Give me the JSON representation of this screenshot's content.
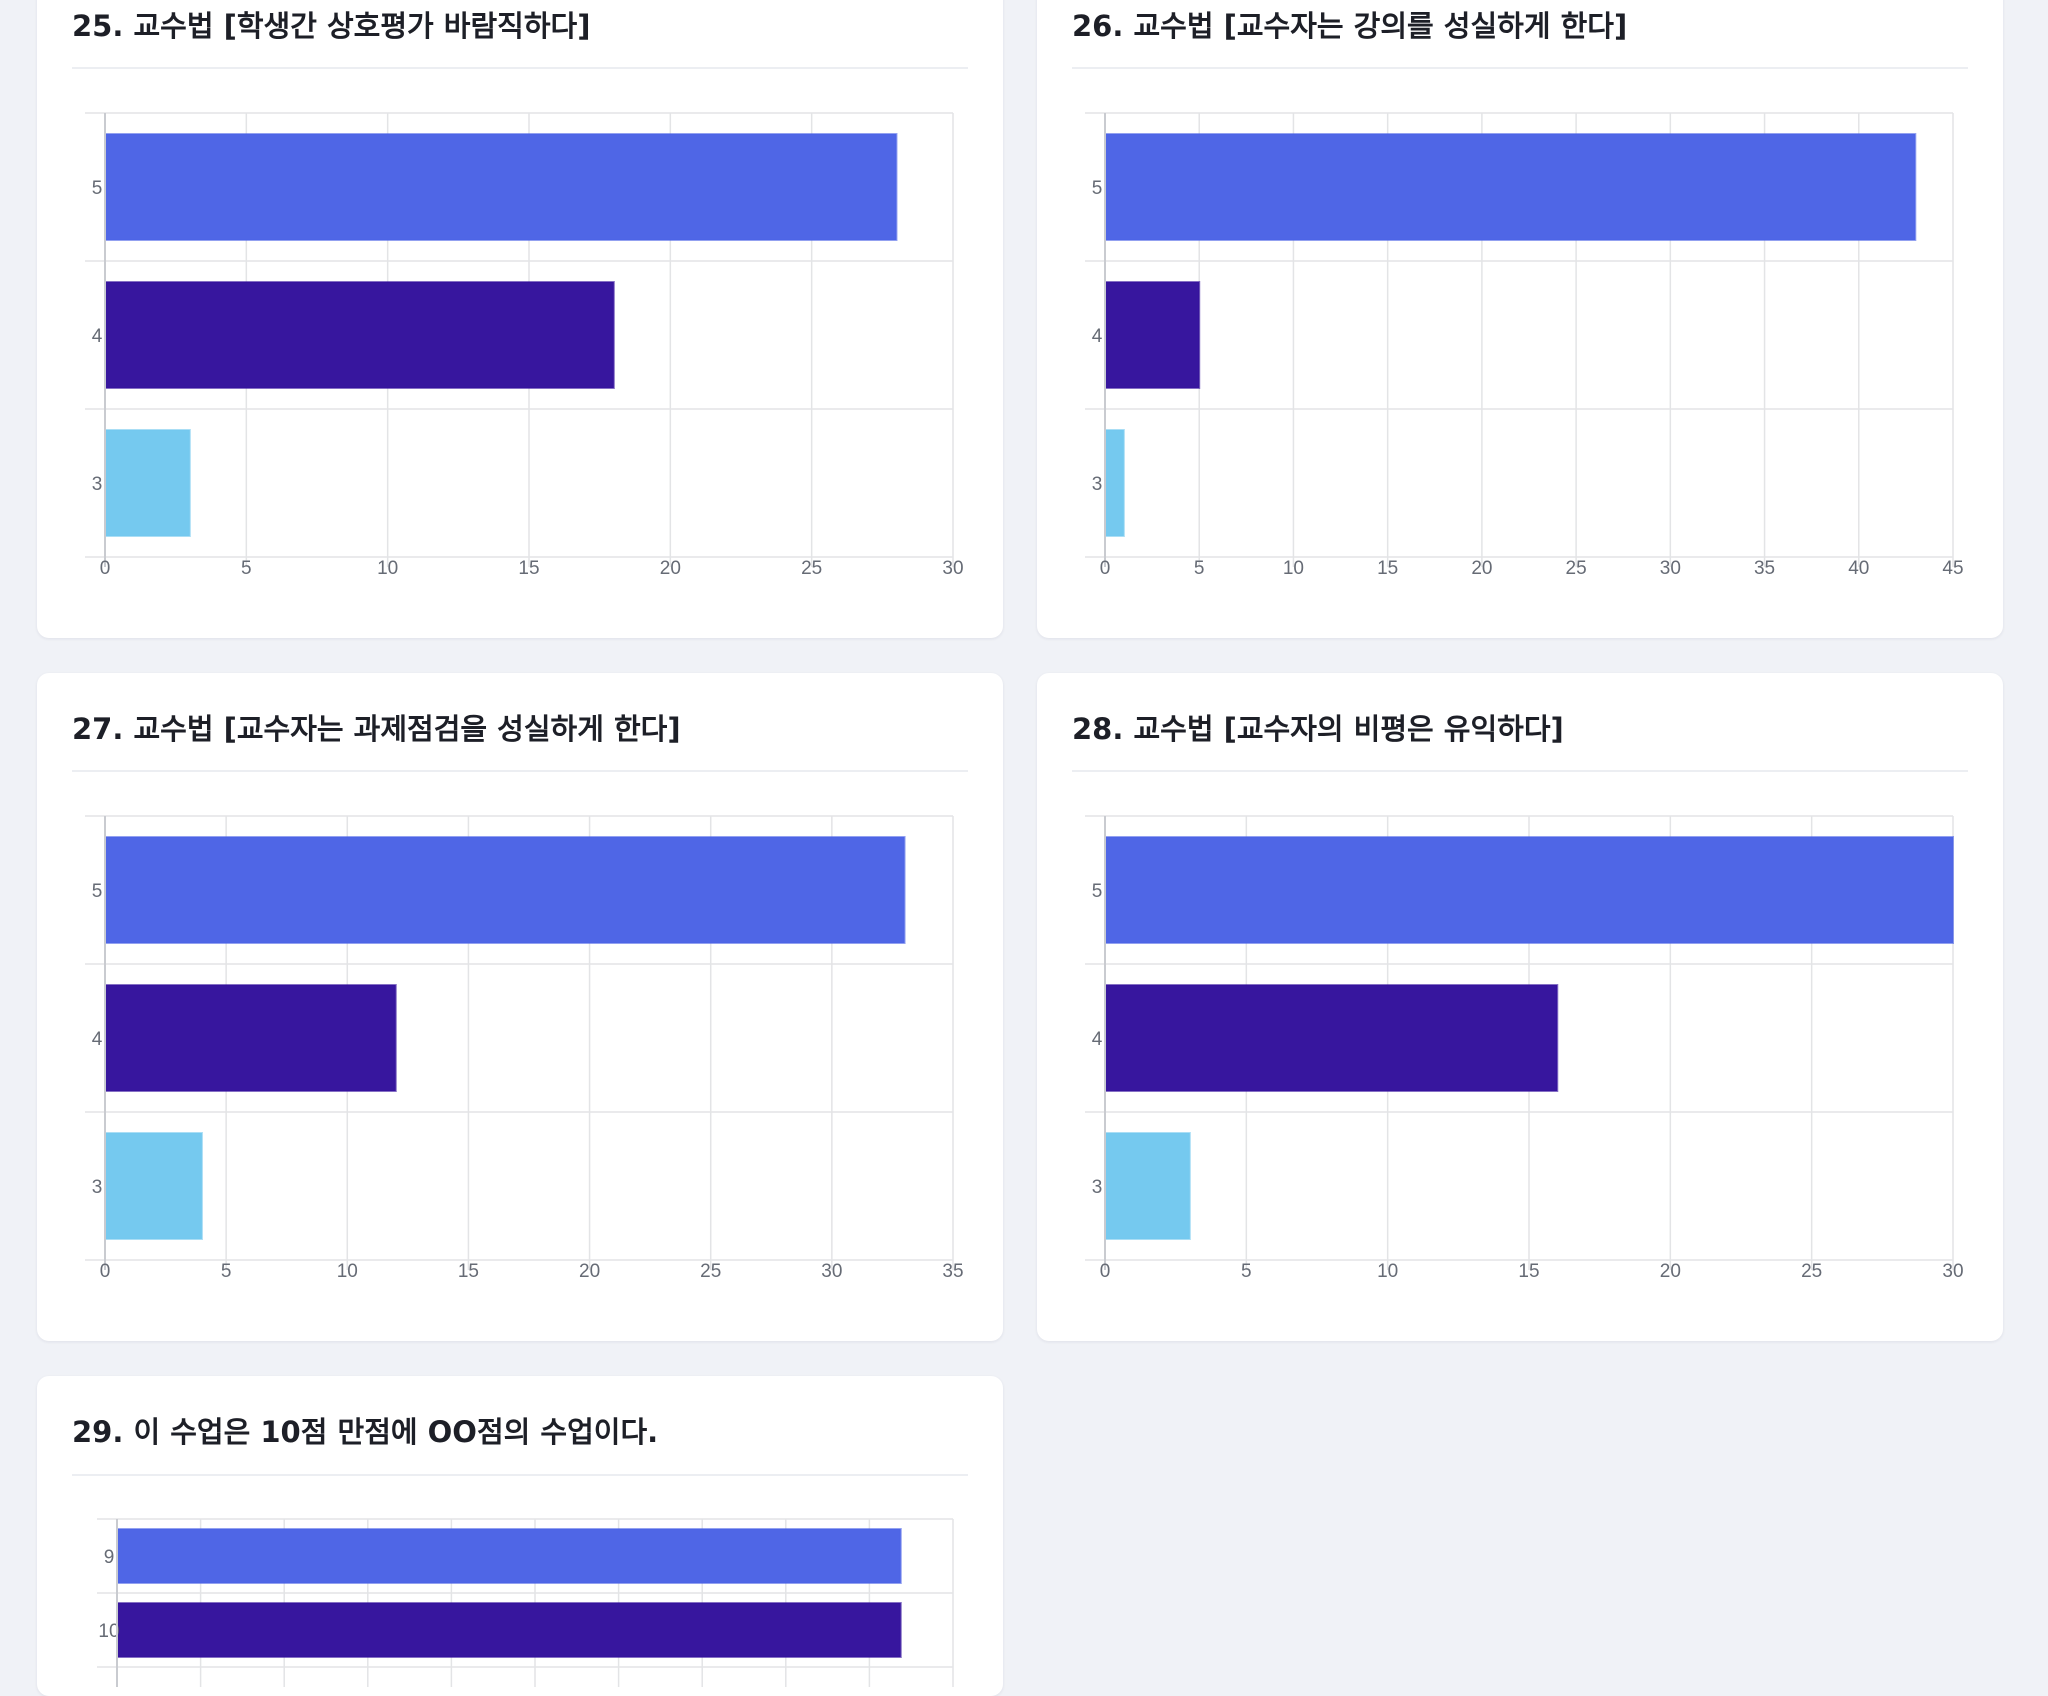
{
  "page": {
    "background": "#f0f2f7"
  },
  "colors": {
    "5": "#4b63e6",
    "4": "#33119c",
    "3": "#72c8ef",
    "9": "#4b63e6",
    "10": "#33119c",
    "grid": "#e3e4e6"
  },
  "cards": [
    {
      "title": "25. 교수법 [학생간 상호평가 바람직하다]"
    },
    {
      "title": "26. 교수법 [교수자는 강의를 성실하게 한다]"
    },
    {
      "title": "27. 교수법 [교수자는 과제점검을 성실하게 한다]"
    },
    {
      "title": "28. 교수법 [교수자의 비평은 유익하다]"
    },
    {
      "title": "29. 이 수업은 10점 만점에 OO점의 수업이다."
    }
  ],
  "chart_data": [
    {
      "type": "bar",
      "orientation": "horizontal",
      "title": "25. 교수법 [학생간 상호평가 바람직하다]",
      "categories": [
        "5",
        "4",
        "3"
      ],
      "values": [
        28,
        18,
        3
      ],
      "xlim": [
        0,
        30
      ],
      "xticks": [
        0,
        5,
        10,
        15,
        20,
        25,
        30
      ],
      "grid": true,
      "legend": "none"
    },
    {
      "type": "bar",
      "orientation": "horizontal",
      "title": "26. 교수법 [교수자는 강의를 성실하게 한다]",
      "categories": [
        "5",
        "4",
        "3"
      ],
      "values": [
        43,
        5,
        1
      ],
      "xlim": [
        0,
        45
      ],
      "xticks": [
        0,
        5,
        10,
        15,
        20,
        25,
        30,
        35,
        40,
        45
      ],
      "grid": true,
      "legend": "none"
    },
    {
      "type": "bar",
      "orientation": "horizontal",
      "title": "27. 교수법 [교수자는 과제점검을 성실하게 한다]",
      "categories": [
        "5",
        "4",
        "3"
      ],
      "values": [
        33,
        12,
        4
      ],
      "xlim": [
        0,
        35
      ],
      "xticks": [
        0,
        5,
        10,
        15,
        20,
        25,
        30,
        35
      ],
      "grid": true,
      "legend": "none"
    },
    {
      "type": "bar",
      "orientation": "horizontal",
      "title": "28. 교수법 [교수자의 비평은 유익하다]",
      "categories": [
        "5",
        "4",
        "3"
      ],
      "values": [
        30,
        16,
        3
      ],
      "xlim": [
        0,
        30
      ],
      "xticks": [
        0,
        5,
        10,
        15,
        20,
        25,
        30
      ],
      "grid": true,
      "legend": "none"
    },
    {
      "type": "bar",
      "orientation": "horizontal",
      "title": "29. 이 수업은 10점 만점에 OO점의 수업이다.",
      "categories": [
        "9",
        "10"
      ],
      "values": [
        15,
        15
      ],
      "xlim": [
        0,
        16
      ],
      "grid": true,
      "legend": "none"
    }
  ]
}
